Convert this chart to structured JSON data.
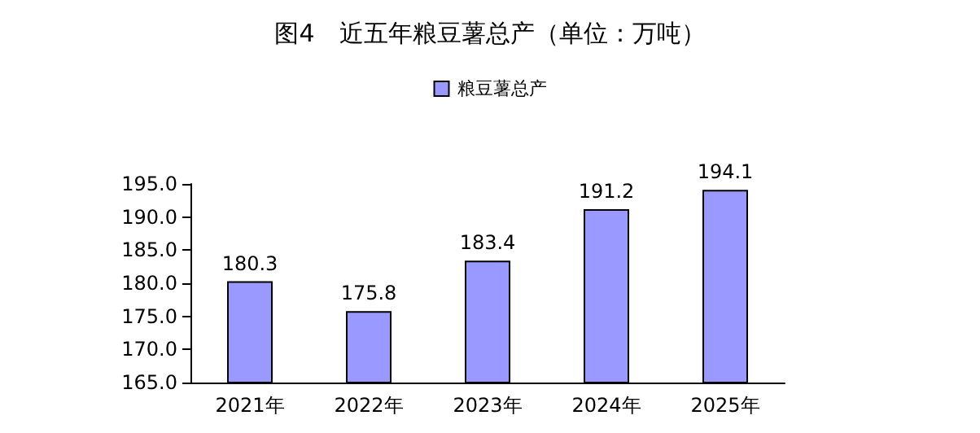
{
  "chart_data": {
    "type": "bar",
    "title": "图4　近五年粮豆薯总产（单位：万吨）",
    "categories": [
      "2021年",
      "2022年",
      "2023年",
      "2024年",
      "2025年"
    ],
    "series": [
      {
        "name": "粮豆薯总产",
        "color": "#9999ff",
        "values": [
          180.3,
          175.8,
          183.4,
          191.2,
          194.1
        ]
      }
    ],
    "ylim": [
      165,
      195
    ],
    "yticks": [
      {
        "value": 165,
        "label": "165.0"
      },
      {
        "value": 170,
        "label": "170.0"
      },
      {
        "value": 175,
        "label": "175.0"
      },
      {
        "value": 180,
        "label": "180.0"
      },
      {
        "value": 185,
        "label": "185.0"
      },
      {
        "value": 190,
        "label": "190.0"
      },
      {
        "value": 195,
        "label": "195.0"
      }
    ],
    "data_labels": true,
    "legend": "top",
    "grid": false
  }
}
